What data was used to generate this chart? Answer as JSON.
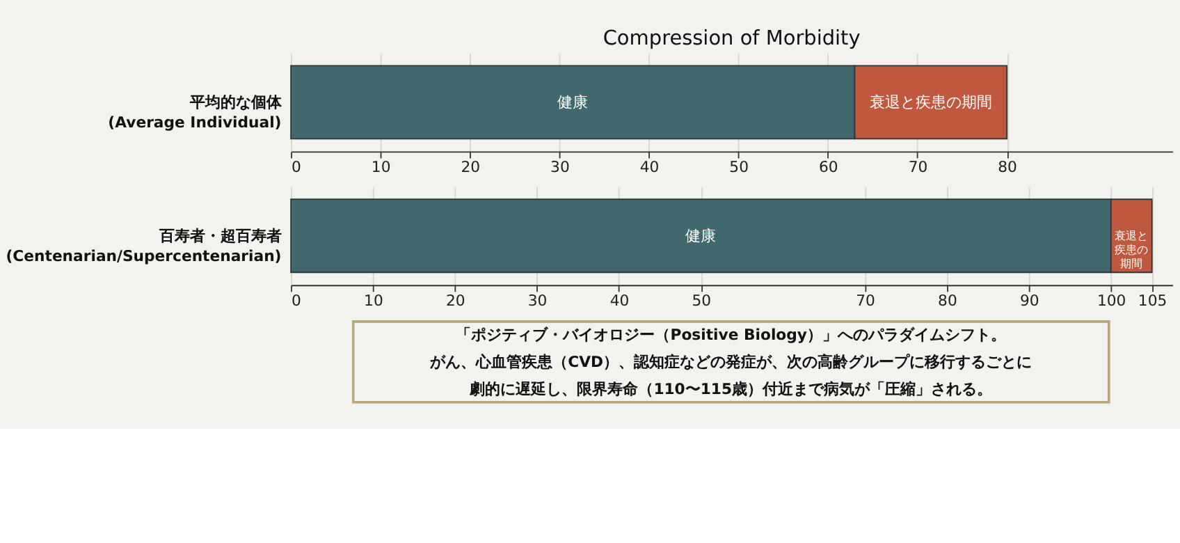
{
  "chart_data": [
    {
      "type": "bar",
      "orientation": "horizontal",
      "stacked": true,
      "title": "Compression of Morbidity",
      "categories": [
        "平均的な個体\n(Average Individual)"
      ],
      "series": [
        {
          "name": "健康",
          "color": "#42686f",
          "values": [
            63
          ]
        },
        {
          "name": "衰退と疾患の期間",
          "color": "#c0573f",
          "values": [
            17
          ]
        }
      ],
      "xlim": [
        0,
        98.5
      ],
      "xticks": [
        0,
        10,
        20,
        30,
        40,
        50,
        60,
        70,
        80
      ],
      "grid": true,
      "legend": false
    },
    {
      "type": "bar",
      "orientation": "horizontal",
      "stacked": true,
      "categories": [
        "百寿者・超百寿者\n(Centenarian/Supercentenarian)"
      ],
      "series": [
        {
          "name": "健康",
          "color": "#42686f",
          "values": [
            100
          ]
        },
        {
          "name": "衰退と疾患の期間",
          "color": "#c0573f",
          "values": [
            5
          ]
        }
      ],
      "xlim": [
        0,
        107.5
      ],
      "xticks": [
        0,
        10,
        20,
        30,
        40,
        50,
        70,
        80,
        90,
        100,
        105
      ],
      "grid": true,
      "legend": false,
      "annotations": [
        "「ポジティブ・バイオロジー（Positive Biology）」へのパラダイムシフト。",
        "がん、心血管疾患（CVD）、認知症などの発症が、次の高齢グループに移行するごとに",
        "劇的に遅延し、限界寿命（110〜115歳）付近まで病気が「圧縮」される。"
      ]
    }
  ]
}
